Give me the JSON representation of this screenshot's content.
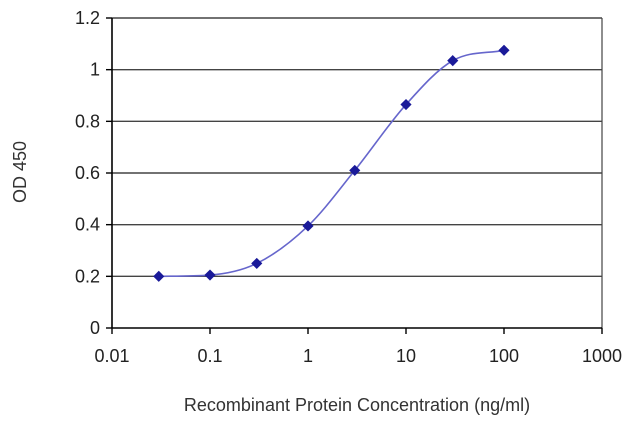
{
  "chart_data": {
    "type": "line",
    "title": "",
    "xlabel": "Recombinant Protein Concentration (ng/ml)",
    "ylabel": "OD 450",
    "x_scale": "log",
    "xlim": [
      0.01,
      1000
    ],
    "ylim": [
      0,
      1.2
    ],
    "x_ticks": [
      0.01,
      0.1,
      1,
      10,
      100,
      1000
    ],
    "x_tick_labels": [
      "0.01",
      "0.1",
      "1",
      "10",
      "100",
      "1000"
    ],
    "y_ticks": [
      0,
      0.2,
      0.4,
      0.6,
      0.8,
      1,
      1.2
    ],
    "y_tick_labels": [
      "0",
      "0.2",
      "0.4",
      "0.6",
      "0.8",
      "1",
      "1.2"
    ],
    "grid": "horizontal",
    "legend": "none",
    "series": [
      {
        "x": [
          0.03,
          0.1,
          0.3,
          1,
          3,
          10,
          30,
          100
        ],
        "y": [
          0.2,
          0.205,
          0.25,
          0.395,
          0.61,
          0.865,
          1.035,
          1.075
        ]
      }
    ],
    "colors": {
      "series": "#1a1a99",
      "line": "#6666cc",
      "grid": "#444444",
      "axis": "#000000"
    }
  }
}
